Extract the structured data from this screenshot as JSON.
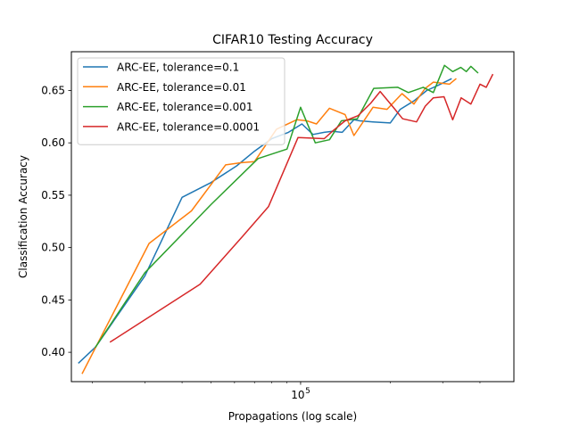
{
  "chart_data": {
    "type": "line",
    "title": "CIFAR10 Testing Accuracy",
    "xlabel": "Propagations (log scale)",
    "ylabel": "Classification Accuracy",
    "xscale": "log",
    "xlim": [
      17000,
      520000
    ],
    "ylim": [
      0.372,
      0.687
    ],
    "x_major_ticks": [
      {
        "value": 100000,
        "label": "10",
        "exponent": "5"
      }
    ],
    "x_minor_ticks": [
      20000,
      30000,
      40000,
      50000,
      60000,
      70000,
      80000,
      90000,
      200000,
      300000,
      400000
    ],
    "y_ticks": [
      {
        "value": 0.4,
        "label": "0.40"
      },
      {
        "value": 0.45,
        "label": "0.45"
      },
      {
        "value": 0.5,
        "label": "0.50"
      },
      {
        "value": 0.55,
        "label": "0.55"
      },
      {
        "value": 0.6,
        "label": "0.60"
      },
      {
        "value": 0.65,
        "label": "0.65"
      }
    ],
    "legend_position": "upper-left",
    "series": [
      {
        "name": "ARC-EE, tolerance=0.1",
        "color": "#1f77b4",
        "x": [
          18000,
          20500,
          30000,
          40000,
          50000,
          61000,
          70000,
          80000,
          91000,
          101000,
          110000,
          120000,
          128000,
          138000,
          151000,
          158000,
          175000,
          200000,
          216000,
          240000,
          265000,
          290000,
          320000
        ],
        "y": [
          0.39,
          0.405,
          0.473,
          0.548,
          0.562,
          0.578,
          0.592,
          0.604,
          0.61,
          0.618,
          0.608,
          0.61,
          0.611,
          0.61,
          0.622,
          0.621,
          0.62,
          0.619,
          0.632,
          0.64,
          0.65,
          0.655,
          0.661
        ]
      },
      {
        "name": "ARC-EE, tolerance=0.01",
        "color": "#ff7f0e",
        "x": [
          18500,
          31000,
          43000,
          56000,
          63000,
          70000,
          83000,
          97000,
          105000,
          113000,
          125000,
          141000,
          151000,
          175000,
          195000,
          219000,
          240000,
          262000,
          279000,
          316000,
          332000
        ],
        "y": [
          0.38,
          0.504,
          0.535,
          0.579,
          0.581,
          0.582,
          0.613,
          0.622,
          0.621,
          0.618,
          0.633,
          0.627,
          0.607,
          0.634,
          0.632,
          0.647,
          0.637,
          0.652,
          0.658,
          0.656,
          0.661
        ]
      },
      {
        "name": "ARC-EE, tolerance=0.001",
        "color": "#2ca02c",
        "x": [
          20500,
          30000,
          50000,
          72000,
          90000,
          100000,
          112000,
          125000,
          137000,
          155000,
          176000,
          212000,
          230000,
          258000,
          279000,
          304000,
          324000,
          345000,
          360000,
          373000,
          393000
        ],
        "y": [
          0.405,
          0.476,
          0.541,
          0.585,
          0.594,
          0.634,
          0.6,
          0.603,
          0.621,
          0.623,
          0.652,
          0.653,
          0.648,
          0.653,
          0.648,
          0.674,
          0.668,
          0.672,
          0.668,
          0.673,
          0.667
        ]
      },
      {
        "name": "ARC-EE, tolerance=0.0001",
        "color": "#d62728",
        "x": [
          23000,
          46000,
          64000,
          78000,
          98000,
          120000,
          129000,
          141000,
          156000,
          172000,
          185000,
          206000,
          220000,
          245000,
          262000,
          279000,
          303000,
          324000,
          346000,
          373000,
          400000,
          420000,
          441000
        ],
        "y": [
          0.41,
          0.465,
          0.511,
          0.539,
          0.605,
          0.604,
          0.612,
          0.621,
          0.626,
          0.638,
          0.649,
          0.633,
          0.623,
          0.62,
          0.635,
          0.643,
          0.644,
          0.622,
          0.643,
          0.637,
          0.656,
          0.653,
          0.665
        ]
      }
    ]
  }
}
